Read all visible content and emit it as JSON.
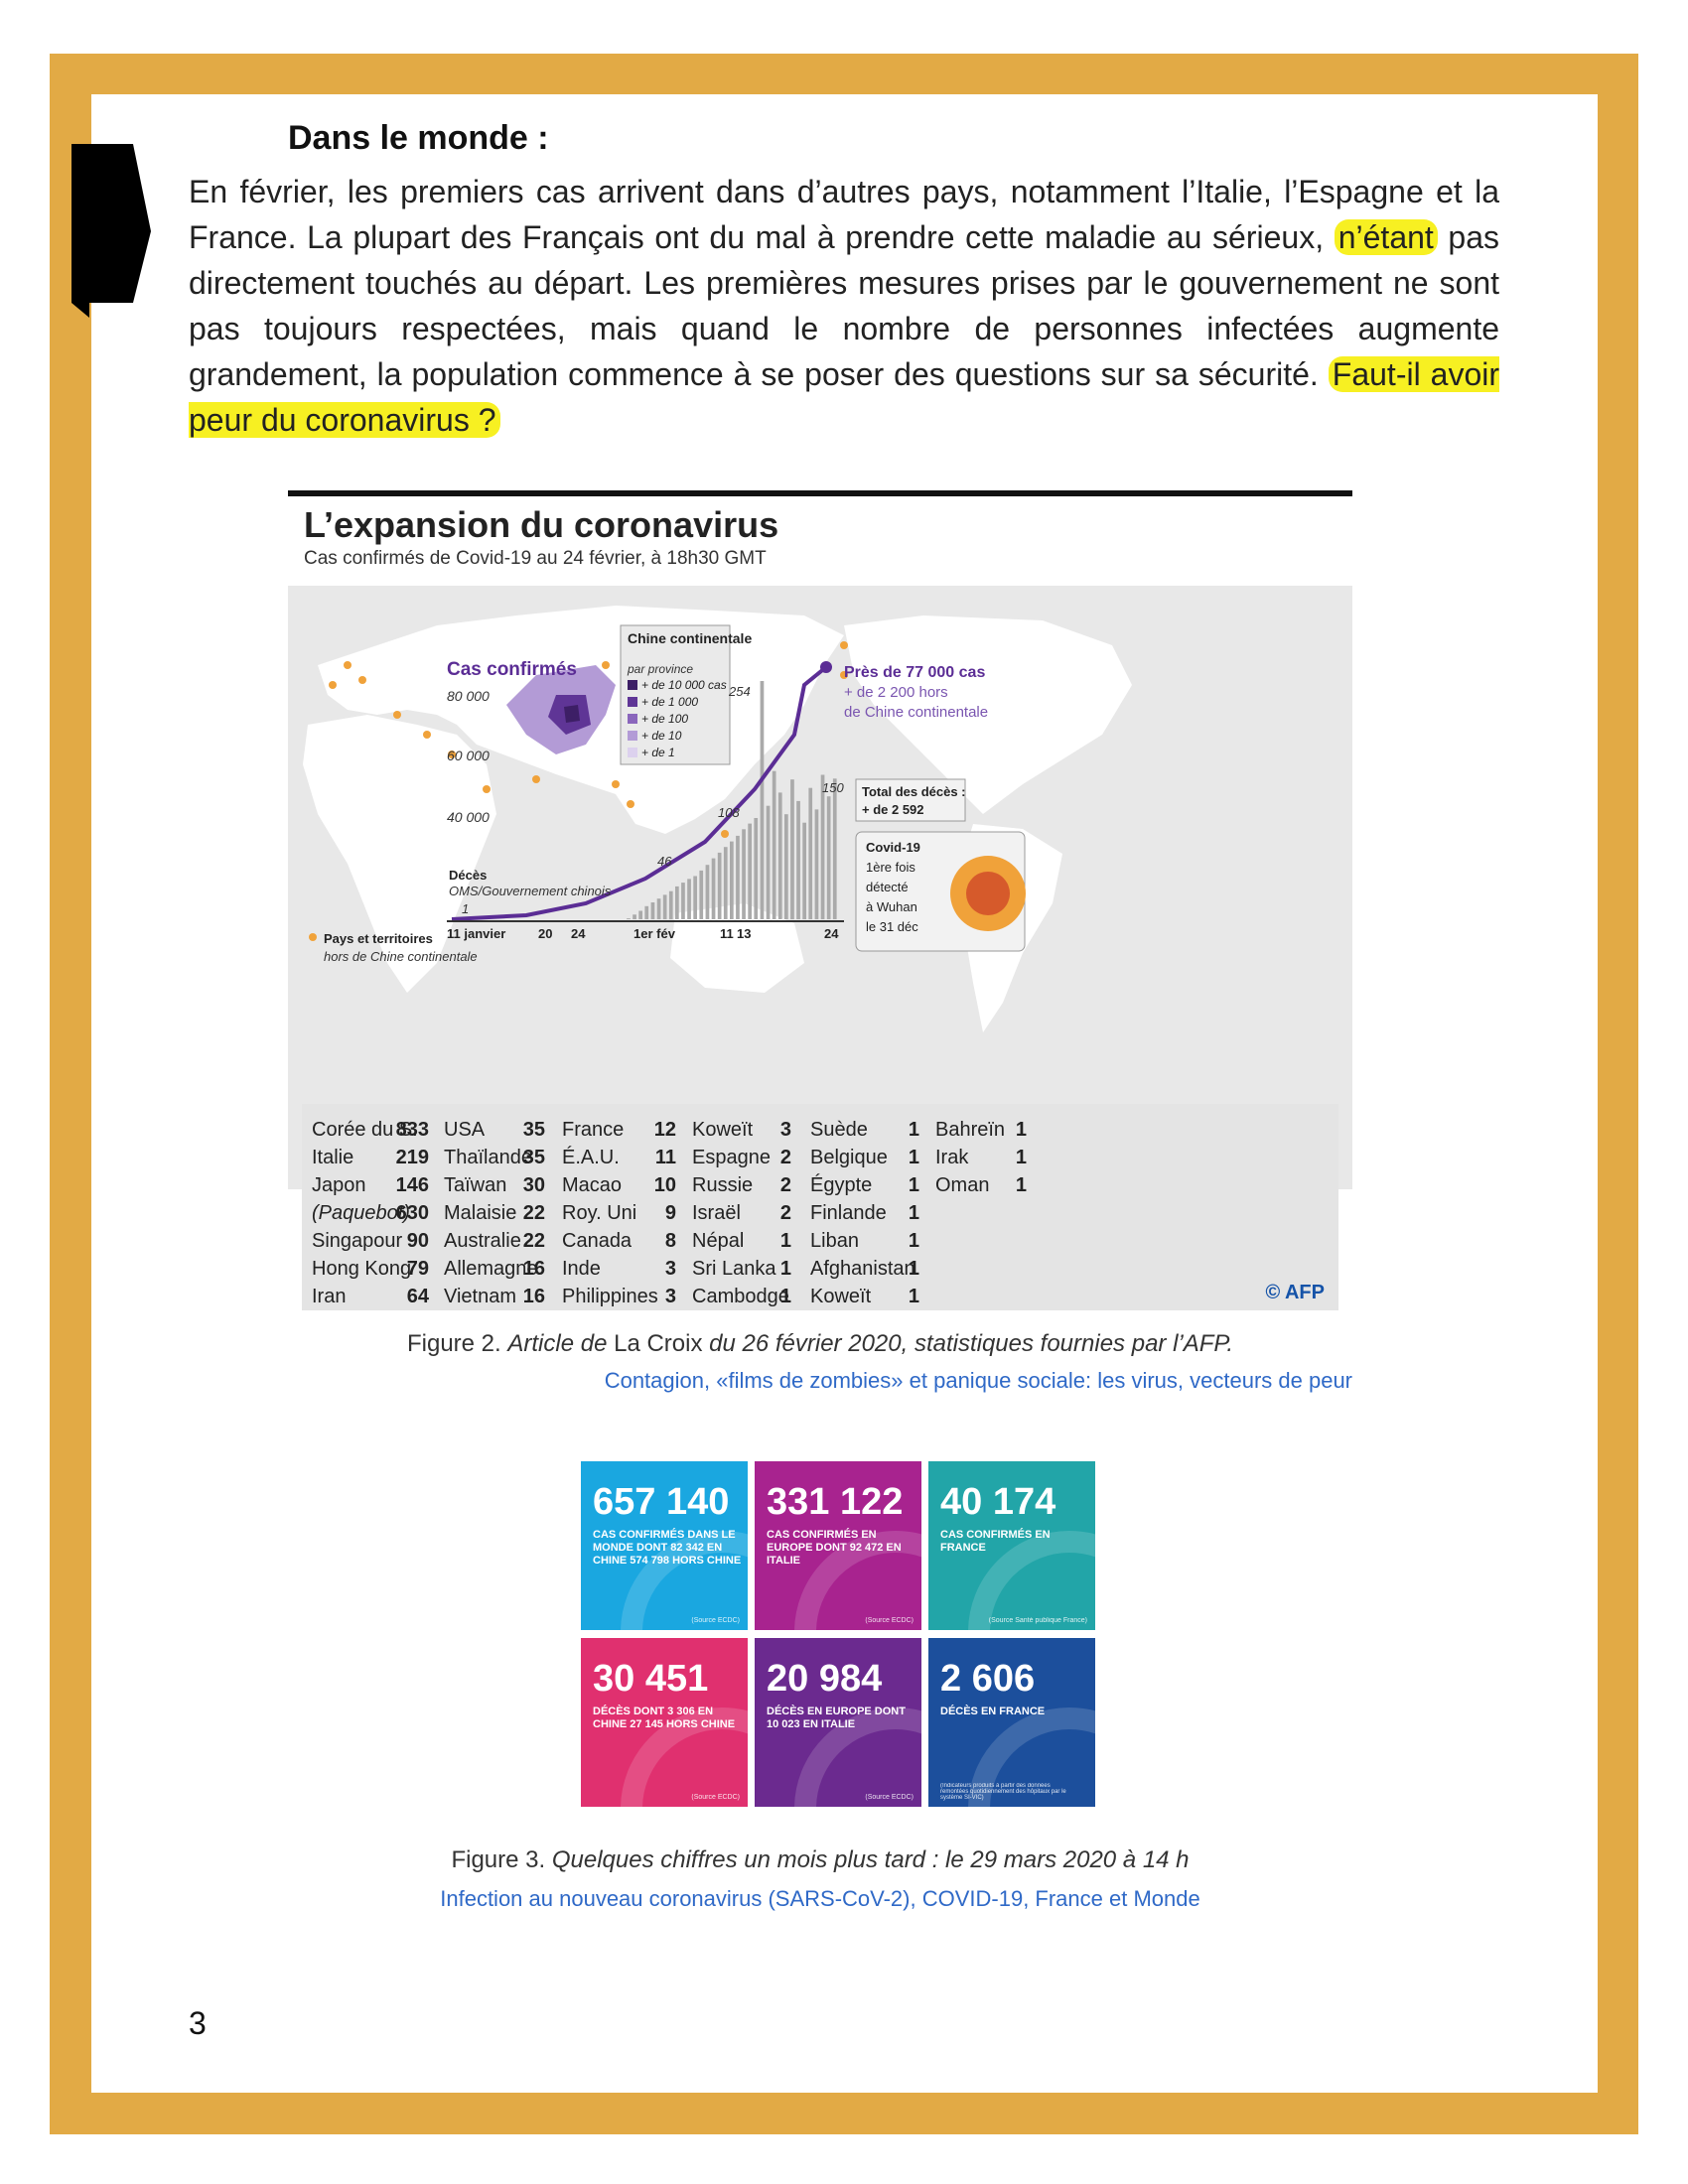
{
  "heading": "Dans le monde :",
  "paragraph": {
    "part1": "En février, les premiers cas arrivent dans d’autres pays, notamment l’Italie, l’Espagne et la France. La plupart des Français ont du mal à prendre cette maladie au sérieux,",
    "hl1": "n’étant",
    "part2": "pas directement touchés au départ. Les premières mesures prises par le gouvernement ne sont pas toujours respectées, mais quand le nombre de personnes infectées augmente grandement, la population commence à se poser des questions sur sa sécurité.",
    "hl2": "Faut-il avoir peur du coronavirus ?"
  },
  "figure2": {
    "title": "L’expansion du coronavirus",
    "subtitle": "Cas confirmés de Covid-19 au 24 février, à 18h30 GMT",
    "cases_label": "Cas confirmés",
    "y_ticks": [
      "80 000",
      "60 000",
      "40 000"
    ],
    "legend_title": "Chine continentale",
    "legend_sub": "par province",
    "legend_items": [
      "+ de 10 000 cas",
      "+ de 1 000",
      "+ de 100",
      "+ de 10",
      "+ de 1"
    ],
    "legend_colors": [
      "#3d1f66",
      "#5f3596",
      "#8a66bc",
      "#b39bd6",
      "#dcd1ee"
    ],
    "annotation_main": "Près de 77 000 cas",
    "annotation_sub1": "+ de 2 200 hors",
    "annotation_sub2": "de Chine continentale",
    "deaths_label": "Décès",
    "deaths_source": "OMS/Gouvernement chinois",
    "bar_labels": [
      "1",
      "46",
      "108",
      "254",
      "150"
    ],
    "x_labels": [
      "11 janvier",
      "20",
      "24",
      "1er fév",
      "11",
      "13",
      "24"
    ],
    "total_deaths_label": "Total des décès :",
    "total_deaths_value": "+ de 2 592",
    "covid_box": [
      "Covid-19",
      "1ère fois",
      "détecté",
      "à Wuhan",
      "le 31 déc"
    ],
    "pays_label": "Pays et territoires",
    "pays_sub": "hors de Chine continentale",
    "table": [
      [
        [
          "Corée du S.",
          "833"
        ],
        [
          "Italie",
          "219"
        ],
        [
          "Japon",
          "146"
        ],
        [
          "(Paquebot)",
          "630"
        ],
        [
          "Singapour",
          "90"
        ],
        [
          "Hong Kong",
          "79"
        ],
        [
          "Iran",
          "64"
        ]
      ],
      [
        [
          "USA",
          "35"
        ],
        [
          "Thaïlande",
          "35"
        ],
        [
          "Taïwan",
          "30"
        ],
        [
          "Malaisie",
          "22"
        ],
        [
          "Australie",
          "22"
        ],
        [
          "Allemagne",
          "16"
        ],
        [
          "Vietnam",
          "16"
        ]
      ],
      [
        [
          "France",
          "12"
        ],
        [
          "É.A.U.",
          "11"
        ],
        [
          "Macao",
          "10"
        ],
        [
          "Roy. Uni",
          "9"
        ],
        [
          "Canada",
          "8"
        ],
        [
          "Inde",
          "3"
        ],
        [
          "Philippines",
          "3"
        ]
      ],
      [
        [
          "Koweït",
          "3"
        ],
        [
          "Espagne",
          "2"
        ],
        [
          "Russie",
          "2"
        ],
        [
          "Israël",
          "2"
        ],
        [
          "Népal",
          "1"
        ],
        [
          "Sri Lanka",
          "1"
        ],
        [
          "Cambodge",
          "1"
        ]
      ],
      [
        [
          "Suède",
          "1"
        ],
        [
          "Belgique",
          "1"
        ],
        [
          "Égypte",
          "1"
        ],
        [
          "Finlande",
          "1"
        ],
        [
          "Liban",
          "1"
        ],
        [
          "Afghanistan",
          "1"
        ],
        [
          "Koweït",
          "1"
        ]
      ],
      [
        [
          "Bahreïn",
          "1"
        ],
        [
          "Irak",
          "1"
        ],
        [
          "Oman",
          "1"
        ]
      ]
    ],
    "credit": "© AFP",
    "caption_prefix": "Figure 2.",
    "caption_italic1": "Article de",
    "caption_normal": "La Croix",
    "caption_italic2": "du 26 février 2020, statistiques fournies par l’AFP.",
    "link": "Contagion, «films de zombies» et panique sociale: les virus, vecteurs de peur"
  },
  "chart_data": {
    "type": "bar",
    "title": "L’expansion du coronavirus",
    "subtitle": "Cas confirmés de Covid-19 au 24 février, à 18h30 GMT",
    "labeled_deaths": [
      {
        "date": "11 janvier",
        "value": 1
      },
      {
        "date": "1er fév",
        "value": 46
      },
      {
        "date": "11 fév",
        "value": 108
      },
      {
        "date": "13 fév",
        "value": 254
      },
      {
        "date": "24 fév",
        "value": 150
      }
    ],
    "cases_curve_end": 77000,
    "ylim": [
      0,
      80000
    ]
  },
  "figure3": {
    "tiles": [
      {
        "num": "657 140",
        "text": "CAS CONFIRMÉS DANS LE MONDE DONT 82 342 EN CHINE 574 798 HORS CHINE",
        "source": "(Source ECDC)",
        "color": "#1aa7e0"
      },
      {
        "num": "331 122",
        "text": "CAS CONFIRMÉS EN EUROPE DONT 92 472 EN ITALIE",
        "source": "(Source ECDC)",
        "color": "#a8238f"
      },
      {
        "num": "40 174",
        "text": "CAS CONFIRMÉS EN FRANCE",
        "source": "(Source Santé publique France)",
        "color": "#22a5a8"
      },
      {
        "num": "30 451",
        "text": "DÉCÈS DONT 3 306 EN CHINE 27 145 HORS CHINE",
        "source": "(Source ECDC)",
        "color": "#e0306f"
      },
      {
        "num": "20 984",
        "text": "DÉCÈS EN EUROPE DONT 10 023 EN ITALIE",
        "source": "(Source ECDC)",
        "color": "#6b2a8f"
      },
      {
        "num": "2 606",
        "text": "DÉCÈS EN FRANCE",
        "source": "(Indicateurs produits à partir des données remontées quotidiennement des hôpitaux par le système SI-VIC)",
        "color": "#1c4f9c"
      }
    ],
    "caption_prefix": "Figure 3.",
    "caption_italic": "Quelques chiffres un mois plus tard : le 29 mars 2020 à 14 h",
    "link": "Infection au nouveau coronavirus (SARS-CoV-2), COVID-19, France et Monde"
  },
  "page_number": "3"
}
